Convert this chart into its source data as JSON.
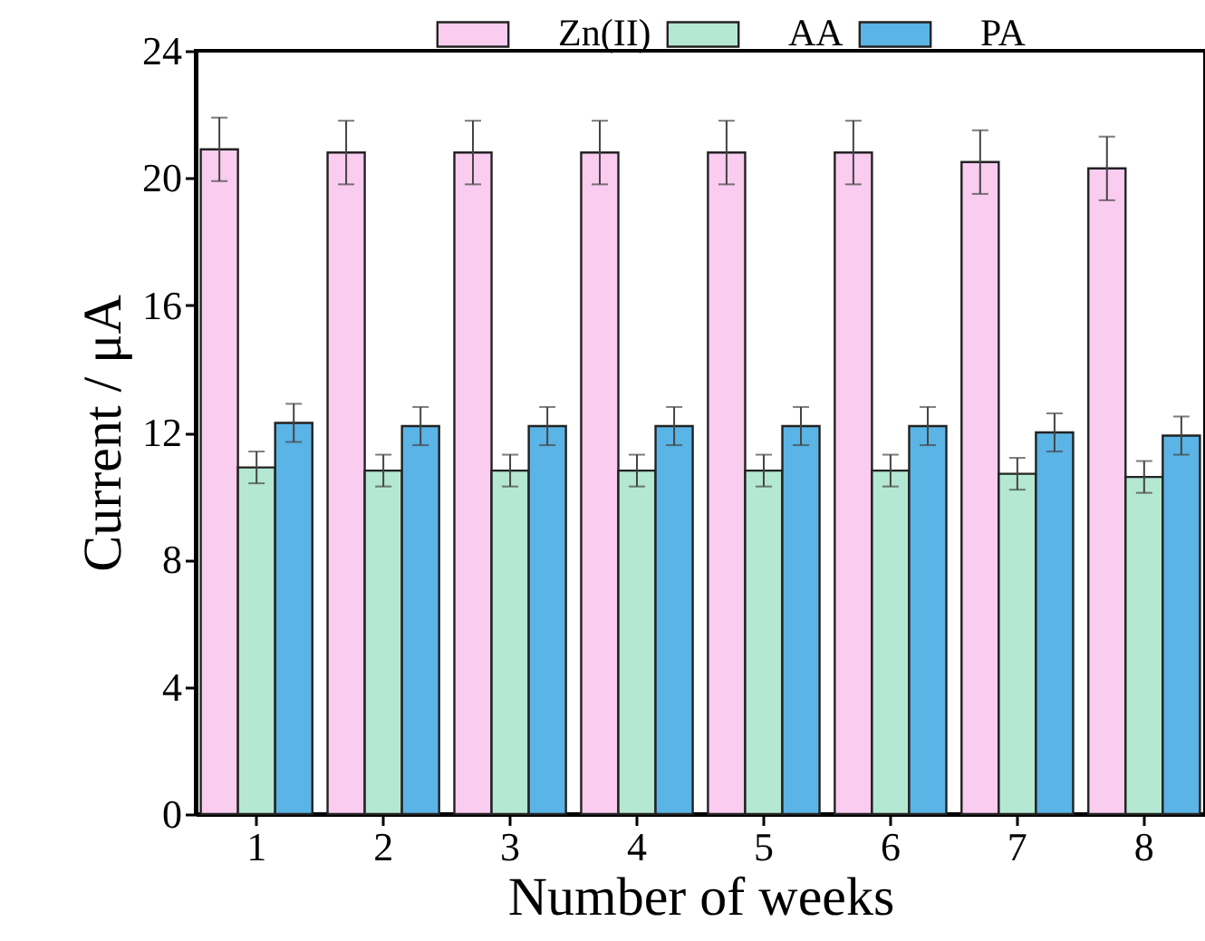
{
  "chart_data": {
    "type": "bar",
    "xlabel": "Number of weeks",
    "ylabel": "Current / μA",
    "categories": [
      "1",
      "2",
      "3",
      "4",
      "5",
      "6",
      "7",
      "8"
    ],
    "series": [
      {
        "name": "Zn(II)",
        "color": "#f9ccf0",
        "values": [
          20.9,
          20.8,
          20.8,
          20.8,
          20.8,
          20.8,
          20.5,
          20.3
        ],
        "errors": [
          1.0,
          1.0,
          1.0,
          1.0,
          1.0,
          1.0,
          1.0,
          1.0
        ]
      },
      {
        "name": "AA",
        "color": "#b5e8d2",
        "values": [
          10.9,
          10.8,
          10.8,
          10.8,
          10.8,
          10.8,
          10.7,
          10.6
        ],
        "errors": [
          0.5,
          0.5,
          0.5,
          0.5,
          0.5,
          0.5,
          0.5,
          0.5
        ]
      },
      {
        "name": "PA",
        "color": "#5bb4e6",
        "values": [
          12.3,
          12.2,
          12.2,
          12.2,
          12.2,
          12.2,
          12.0,
          11.9
        ],
        "errors": [
          0.6,
          0.6,
          0.6,
          0.6,
          0.6,
          0.6,
          0.6,
          0.6
        ]
      }
    ],
    "ylim": [
      0,
      24
    ],
    "yticks": [
      0,
      4,
      8,
      12,
      16,
      20,
      24
    ],
    "legend": "top"
  }
}
